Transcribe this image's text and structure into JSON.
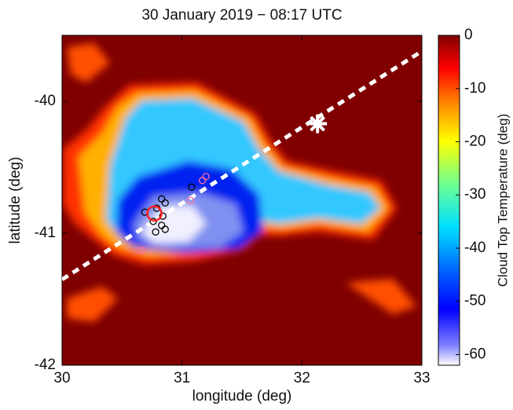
{
  "chart_data": {
    "type": "heatmap",
    "title": "30 January 2019 − 08:17 UTC",
    "x_label": "longitude (deg)",
    "y_label": "latitude (deg)",
    "xlim": [
      30,
      33
    ],
    "ylim": [
      -42,
      -39.5
    ],
    "xticks": [
      30,
      31,
      32,
      33
    ],
    "yticks": [
      -42,
      -41,
      -40
    ],
    "colorbar": {
      "label": "Cloud Top Temperature (deg)",
      "clim": [
        -62,
        0
      ],
      "ticks": [
        -60,
        -50,
        -40,
        -30,
        -20,
        -10,
        0
      ]
    },
    "track": {
      "x": [
        30,
        33
      ],
      "y": [
        -41.35,
        -39.62
      ],
      "color": "#ffffff"
    },
    "star": {
      "x": 32.13,
      "y": -40.17,
      "color": "#ffffff"
    },
    "highlight": {
      "x": 30.77,
      "y": -40.85,
      "color": "#ff2020"
    },
    "series": [
      {
        "color": "#000000",
        "x": [
          30.83,
          30.86,
          30.79,
          30.84,
          30.76,
          30.83,
          30.78,
          30.86,
          31.08,
          30.69
        ],
        "y": [
          -40.74,
          -40.77,
          -40.81,
          -40.87,
          -40.91,
          -40.94,
          -40.99,
          -40.97,
          -40.65,
          -40.84
        ]
      },
      {
        "color": "#ff70a0",
        "x": [
          31.17,
          31.2,
          31.07,
          30.66
        ],
        "y": [
          -40.6,
          -40.57,
          -40.75,
          -41.13
        ]
      }
    ]
  }
}
